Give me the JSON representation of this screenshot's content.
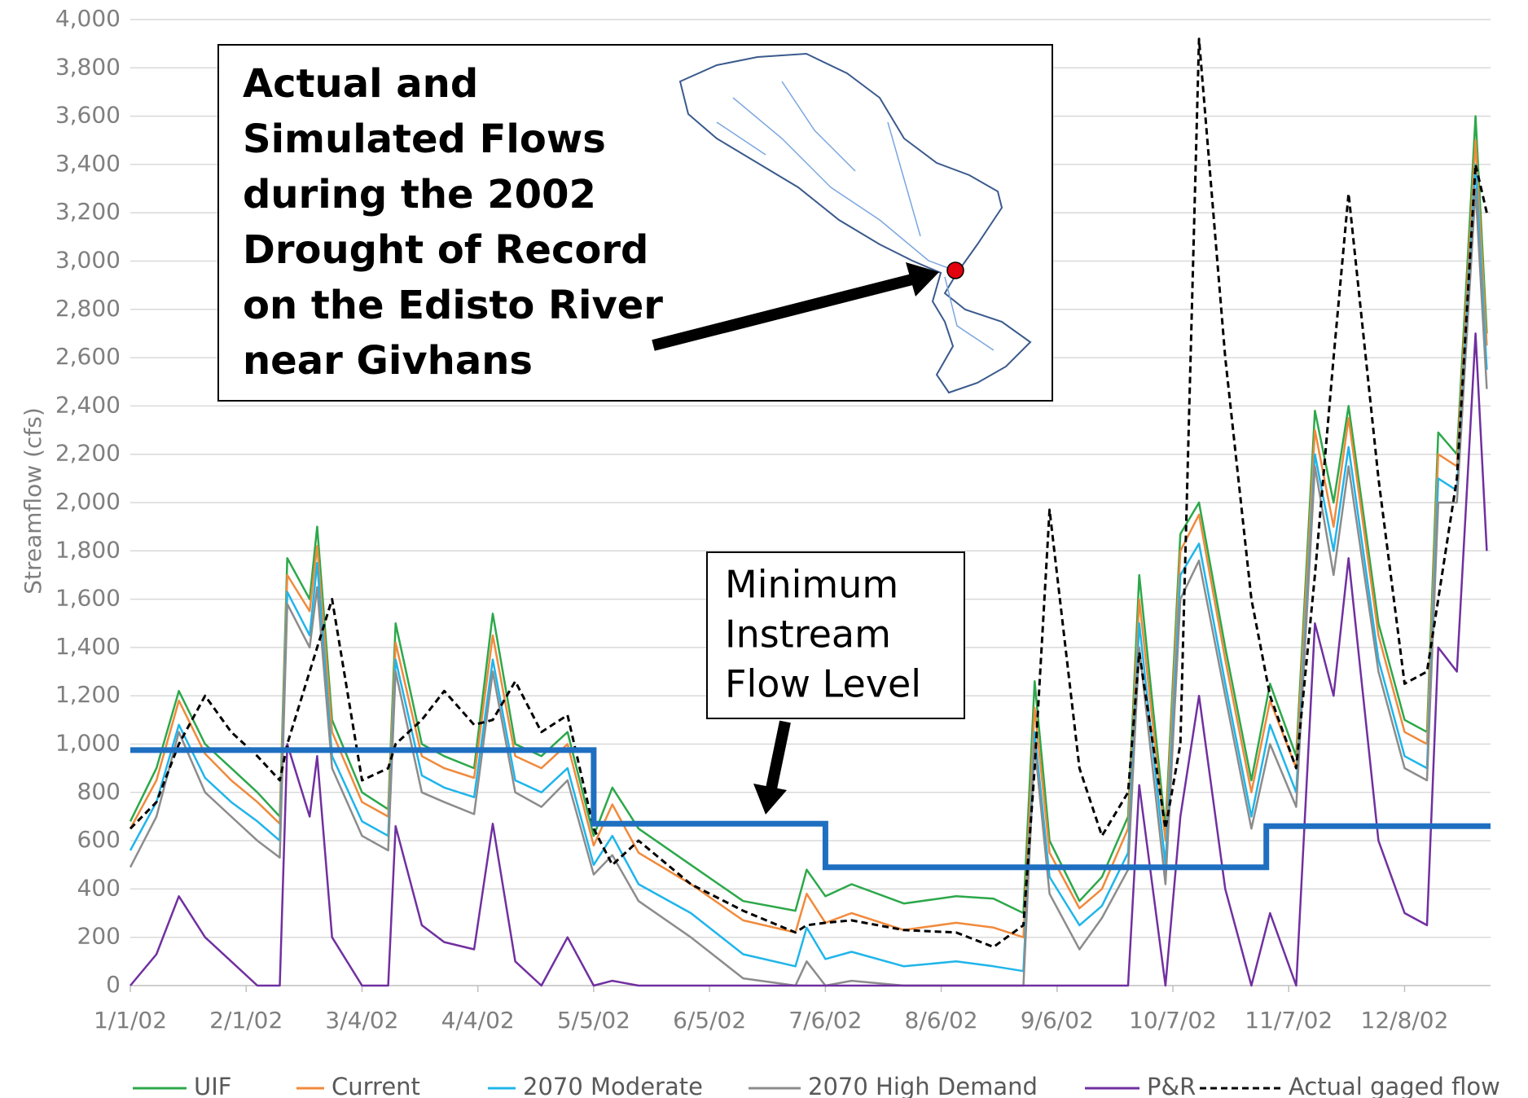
{
  "chart_data": {
    "type": "line",
    "title": [
      "Actual and",
      "Simulated Flows",
      "during the 2002",
      "Drought of Record",
      "on the Edisto River",
      "near Givhans"
    ],
    "y_label": "Streamflow (cfs)",
    "annotation": [
      "Minimum",
      "Instream",
      "Flow Level"
    ],
    "x": [
      "1/1/02",
      "1/8/02",
      "1/14/02",
      "1/21/02",
      "1/28/02",
      "2/4/02",
      "2/10/02",
      "2/12/02",
      "2/18/02",
      "2/20/02",
      "2/24/02",
      "3/4/02",
      "3/11/02",
      "3/13/02",
      "3/20/02",
      "3/26/02",
      "4/3/02",
      "4/8/02",
      "4/14/02",
      "4/21/02",
      "4/28/02",
      "5/5/02",
      "5/10/02",
      "5/17/02",
      "5/31/02",
      "6/14/02",
      "6/28/02",
      "7/1/02",
      "7/6/02",
      "7/13/02",
      "7/27/02",
      "8/10/02",
      "8/20/02",
      "8/28/02",
      "8/31/02",
      "9/4/02",
      "9/12/02",
      "9/18/02",
      "9/25/02",
      "9/28/02",
      "10/5/02",
      "10/9/02",
      "10/14/02",
      "10/21/02",
      "10/28/02",
      "11/2/02",
      "11/9/02",
      "11/14/02",
      "11/19/02",
      "11/23/02",
      "12/1/02",
      "12/8/02",
      "12/14/02",
      "12/17/02",
      "12/22/02",
      "12/27/02",
      "12/30/02"
    ],
    "series": [
      {
        "name": "UIF",
        "color": "#2ca84a",
        "values": [
          680,
          900,
          1220,
          1000,
          900,
          800,
          700,
          1770,
          1600,
          1900,
          1100,
          800,
          730,
          1500,
          1000,
          950,
          900,
          1540,
          1000,
          950,
          1050,
          620,
          820,
          650,
          500,
          350,
          310,
          480,
          370,
          420,
          340,
          370,
          360,
          300,
          1260,
          600,
          350,
          450,
          700,
          1700,
          650,
          1870,
          2000,
          1400,
          850,
          1250,
          950,
          2380,
          2000,
          2400,
          1500,
          1100,
          1050,
          2290,
          2200,
          3600,
          2700
        ]
      },
      {
        "name": "Current",
        "color": "#f08a3c",
        "values": [
          650,
          850,
          1180,
          960,
          850,
          760,
          670,
          1700,
          1550,
          1820,
          1050,
          760,
          700,
          1420,
          950,
          900,
          860,
          1450,
          950,
          900,
          1000,
          580,
          750,
          550,
          420,
          270,
          220,
          380,
          260,
          300,
          230,
          260,
          240,
          200,
          1150,
          550,
          320,
          400,
          650,
          1600,
          600,
          1800,
          1950,
          1350,
          800,
          1180,
          900,
          2300,
          1900,
          2350,
          1450,
          1050,
          1000,
          2200,
          2150,
          3500,
          2650
        ]
      },
      {
        "name": "2070 Moderate",
        "color": "#1fb5ea",
        "values": [
          560,
          760,
          1080,
          860,
          760,
          680,
          600,
          1630,
          1450,
          1750,
          950,
          680,
          620,
          1350,
          870,
          820,
          780,
          1350,
          850,
          800,
          900,
          500,
          620,
          420,
          300,
          130,
          80,
          240,
          110,
          140,
          80,
          100,
          80,
          60,
          1050,
          450,
          250,
          330,
          550,
          1500,
          500,
          1700,
          1830,
          1250,
          700,
          1080,
          800,
          2200,
          1800,
          2230,
          1350,
          950,
          900,
          2100,
          2050,
          3400,
          2550
        ]
      },
      {
        "name": "2070 High Demand",
        "color": "#8c8c8c",
        "values": [
          490,
          700,
          1050,
          800,
          700,
          600,
          530,
          1580,
          1400,
          1650,
          900,
          620,
          560,
          1300,
          800,
          760,
          710,
          1300,
          800,
          740,
          850,
          460,
          540,
          350,
          200,
          30,
          0,
          100,
          0,
          20,
          0,
          0,
          0,
          0,
          1000,
          380,
          150,
          280,
          480,
          1400,
          420,
          1600,
          1760,
          1200,
          650,
          1000,
          740,
          2150,
          1700,
          2150,
          1300,
          900,
          850,
          2000,
          2000,
          3300,
          2470
        ]
      },
      {
        "name": "P&R",
        "color": "#7030a0",
        "values": [
          0,
          130,
          370,
          200,
          100,
          0,
          0,
          1000,
          700,
          950,
          200,
          0,
          0,
          660,
          250,
          180,
          150,
          670,
          100,
          0,
          200,
          0,
          20,
          0,
          0,
          0,
          0,
          0,
          0,
          0,
          0,
          0,
          0,
          0,
          0,
          0,
          0,
          0,
          0,
          830,
          0,
          700,
          1200,
          400,
          0,
          300,
          0,
          1500,
          1200,
          1770,
          600,
          300,
          250,
          1400,
          1300,
          2700,
          1800
        ]
      },
      {
        "name": "Actual gaged flow",
        "color": "#000000",
        "dashed": true,
        "values": [
          650,
          760,
          1000,
          1200,
          1050,
          950,
          850,
          1000,
          1300,
          1400,
          1600,
          850,
          900,
          1000,
          1100,
          1220,
          1080,
          1100,
          1260,
          1050,
          1120,
          650,
          500,
          600,
          420,
          310,
          220,
          250,
          260,
          270,
          230,
          220,
          160,
          250,
          900,
          1970,
          900,
          620,
          800,
          1380,
          650,
          1000,
          3920,
          2600,
          1600,
          1200,
          900,
          1700,
          2600,
          3280,
          2100,
          1250,
          1300,
          1600,
          2100,
          3400,
          3200
        ]
      }
    ],
    "min_flow": {
      "color": "#1f6fc1",
      "x": [
        "1/1/02",
        "5/5/02",
        "7/6/02",
        "11/1/02"
      ],
      "values": [
        975,
        670,
        490,
        660
      ]
    },
    "xlim": [
      "1/1/02",
      "12/31/02"
    ],
    "xticks": [
      "1/1/02",
      "2/1/02",
      "3/4/02",
      "4/4/02",
      "5/5/02",
      "6/5/02",
      "7/6/02",
      "8/6/02",
      "9/6/02",
      "10/7/02",
      "11/7/02",
      "12/8/02"
    ],
    "ylim": [
      0,
      4000
    ],
    "yticks": [
      0,
      200,
      400,
      600,
      800,
      {
        "value": 1000,
        "label": "1,000"
      },
      {
        "value": 1200,
        "label": "1,200"
      },
      {
        "value": 1400,
        "label": "1,400"
      },
      {
        "value": 1600,
        "label": "1,600"
      },
      {
        "value": 1800,
        "label": "1,800"
      },
      {
        "value": 2000,
        "label": "2,000"
      },
      {
        "value": 2200,
        "label": "2,200"
      },
      {
        "value": 2400,
        "label": "2,400"
      },
      {
        "value": 2600,
        "label": "2,600"
      },
      {
        "value": 2800,
        "label": "2,800"
      },
      {
        "value": 3000,
        "label": "3,000"
      },
      {
        "value": 3200,
        "label": "3,200"
      },
      {
        "value": 3400,
        "label": "3,400"
      },
      {
        "value": 3600,
        "label": "3,600"
      },
      {
        "value": 3800,
        "label": "3,800"
      },
      {
        "value": 4000,
        "label": "4,000"
      }
    ],
    "grid": true,
    "legend": "bottom"
  }
}
